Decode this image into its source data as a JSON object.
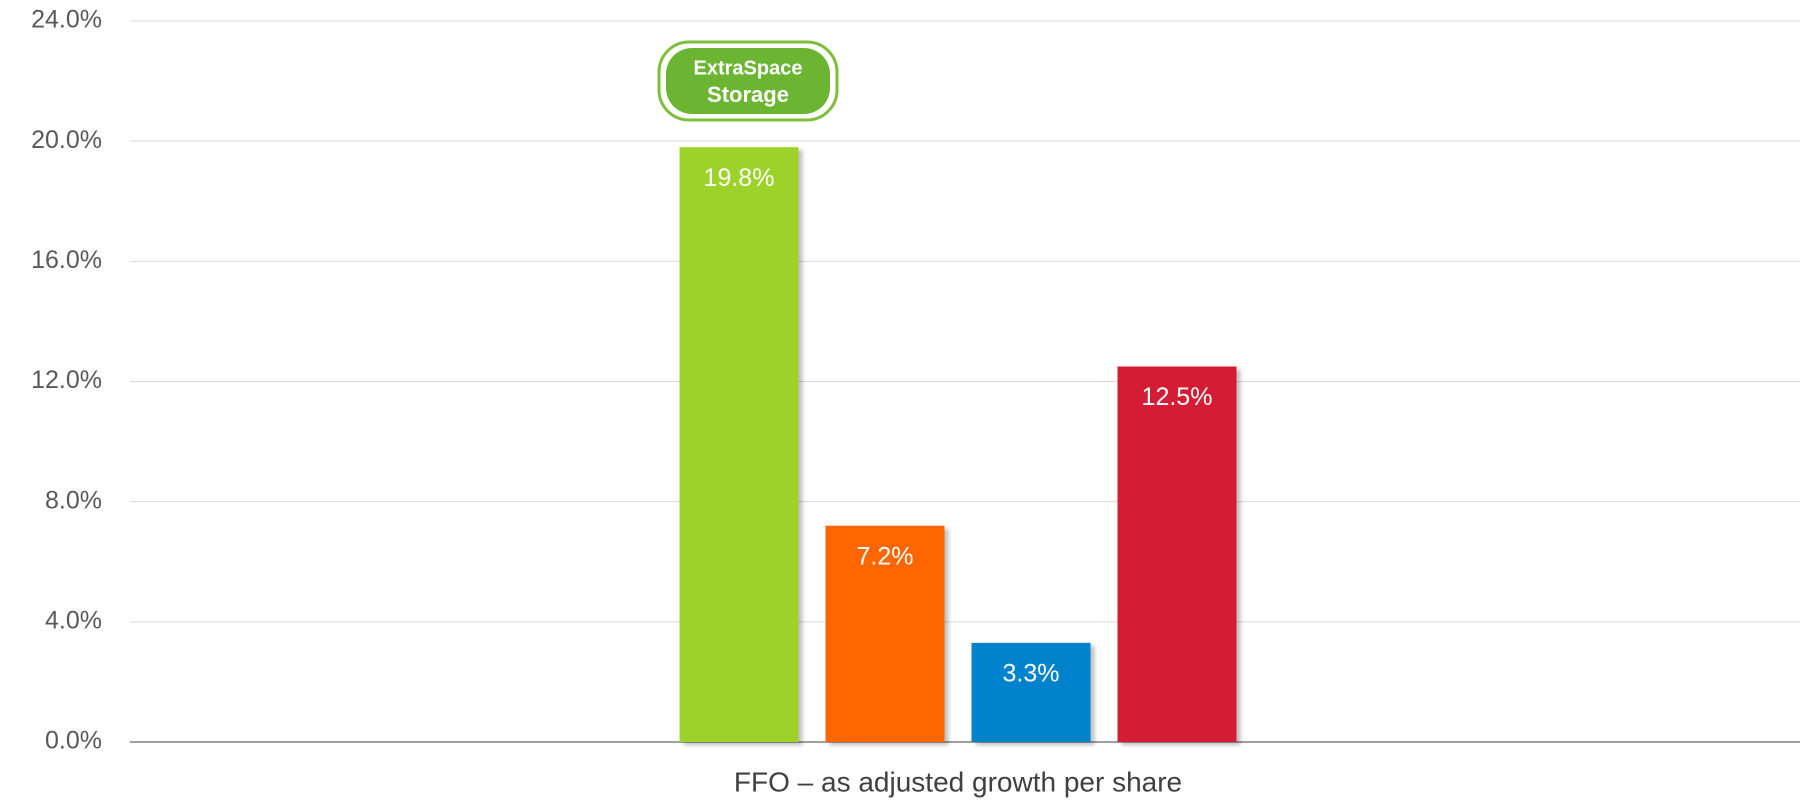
{
  "chart_data": {
    "type": "bar",
    "categories": [
      "FFO – as adjusted growth per share"
    ],
    "series": [
      {
        "color": "#9dd22a",
        "values": [
          19.8
        ],
        "value_labels": [
          "19.8%"
        ]
      },
      {
        "color": "#ff6600",
        "values": [
          7.2
        ],
        "value_labels": [
          "7.2%"
        ]
      },
      {
        "color": "#0083cc",
        "values": [
          3.3
        ],
        "value_labels": [
          "3.3%"
        ]
      },
      {
        "color": "#d41c36",
        "values": [
          12.5
        ],
        "value_labels": [
          "12.5%"
        ]
      }
    ],
    "ylim": [
      0,
      24
    ],
    "yticks": [
      {
        "value": 0,
        "label": "0.0%"
      },
      {
        "value": 4,
        "label": "4.0%"
      },
      {
        "value": 8,
        "label": "8.0%"
      },
      {
        "value": 12,
        "label": "12.0%"
      },
      {
        "value": 16,
        "label": "16.0%"
      },
      {
        "value": 20,
        "label": "20.0%"
      },
      {
        "value": 24,
        "label": "24.0%"
      }
    ],
    "grid": true
  },
  "logo": {
    "line1": "ExtraSpace",
    "line2": "Storage"
  }
}
